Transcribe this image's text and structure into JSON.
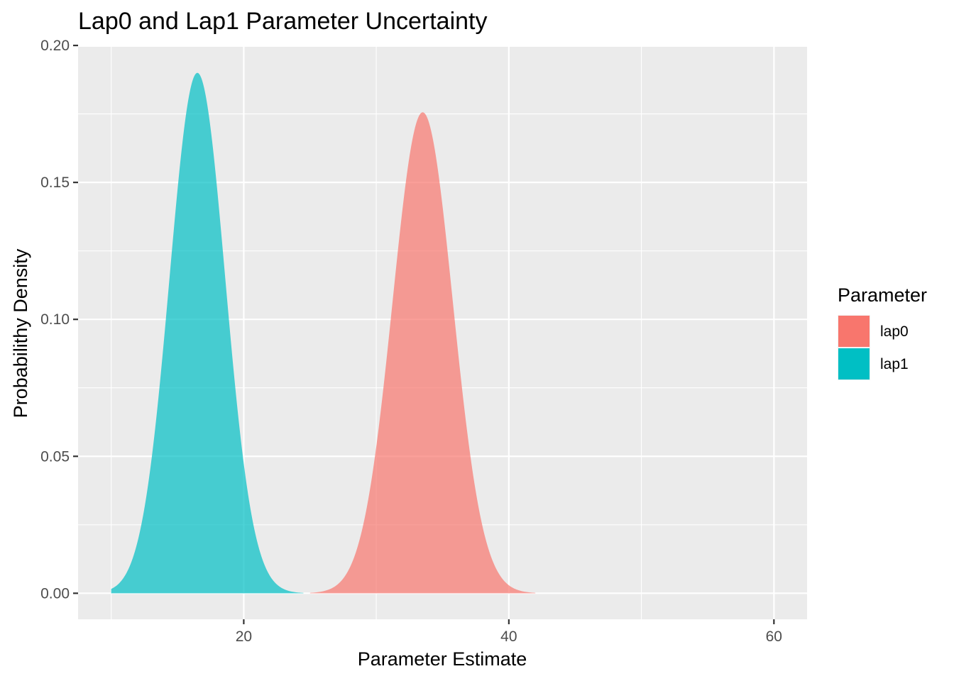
{
  "chart_data": {
    "type": "area",
    "title": "Lap0 and Lap1 Parameter Uncertainty",
    "xlabel": "Parameter Estimate",
    "ylabel": "Probabilithy Density",
    "xlim": [
      7.5,
      62.5
    ],
    "ylim": [
      -0.0095,
      0.1995
    ],
    "x_ticks": [
      20,
      40,
      60
    ],
    "x_tick_labels": [
      "20",
      "40",
      "60"
    ],
    "y_ticks": [
      0,
      0.05,
      0.1,
      0.15,
      0.2
    ],
    "y_tick_labels": [
      "0.00",
      "0.05",
      "0.10",
      "0.15",
      "0.20"
    ],
    "grid": true,
    "legend": {
      "title": "Parameter",
      "position": "right"
    },
    "series": [
      {
        "name": "lap0",
        "color": "#F8766D",
        "opacity": 0.7,
        "distribution": "normal",
        "mean": 33.5,
        "peak_density": 0.1756,
        "x_range": [
          25,
          42
        ]
      },
      {
        "name": "lap1",
        "color": "#00BFC4",
        "opacity": 0.7,
        "distribution": "normal",
        "mean": 16.5,
        "peak_density": 0.19,
        "x_range": [
          10,
          24.5
        ]
      }
    ]
  }
}
